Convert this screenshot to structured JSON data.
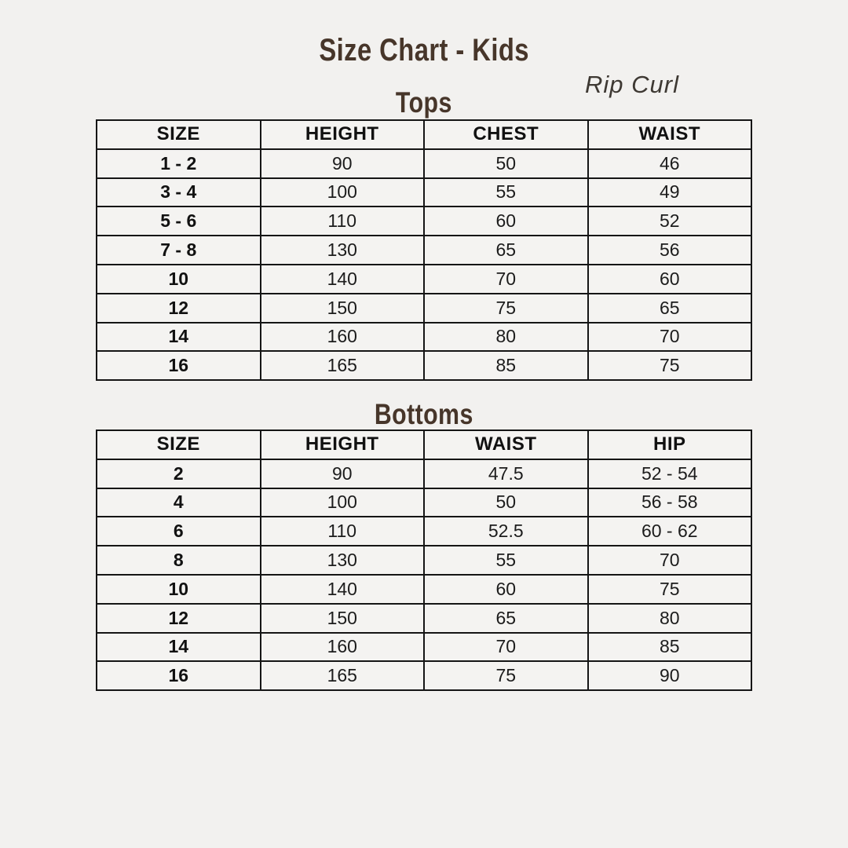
{
  "page": {
    "title": "Size Chart - Kids",
    "brand": "Rip Curl"
  },
  "tops": {
    "heading": "Tops",
    "columns": [
      "SIZE",
      "HEIGHT",
      "CHEST",
      "WAIST"
    ],
    "rows": [
      [
        "1 - 2",
        "90",
        "50",
        "46"
      ],
      [
        "3 - 4",
        "100",
        "55",
        "49"
      ],
      [
        "5 - 6",
        "110",
        "60",
        "52"
      ],
      [
        "7 - 8",
        "130",
        "65",
        "56"
      ],
      [
        "10",
        "140",
        "70",
        "60"
      ],
      [
        "12",
        "150",
        "75",
        "65"
      ],
      [
        "14",
        "160",
        "80",
        "70"
      ],
      [
        "16",
        "165",
        "85",
        "75"
      ]
    ]
  },
  "bottoms": {
    "heading": "Bottoms",
    "columns": [
      "SIZE",
      "HEIGHT",
      "WAIST",
      "HIP"
    ],
    "rows": [
      [
        "2",
        "90",
        "47.5",
        "52 - 54"
      ],
      [
        "4",
        "100",
        "50",
        "56 - 58"
      ],
      [
        "6",
        "110",
        "52.5",
        "60 - 62"
      ],
      [
        "8",
        "130",
        "55",
        "70"
      ],
      [
        "10",
        "140",
        "60",
        "75"
      ],
      [
        "12",
        "150",
        "65",
        "80"
      ],
      [
        "14",
        "160",
        "70",
        "85"
      ],
      [
        "16",
        "165",
        "75",
        "90"
      ]
    ]
  },
  "colors": {
    "heading_brown": "#47362a",
    "background": "#f2f1ef",
    "border": "#151515"
  }
}
